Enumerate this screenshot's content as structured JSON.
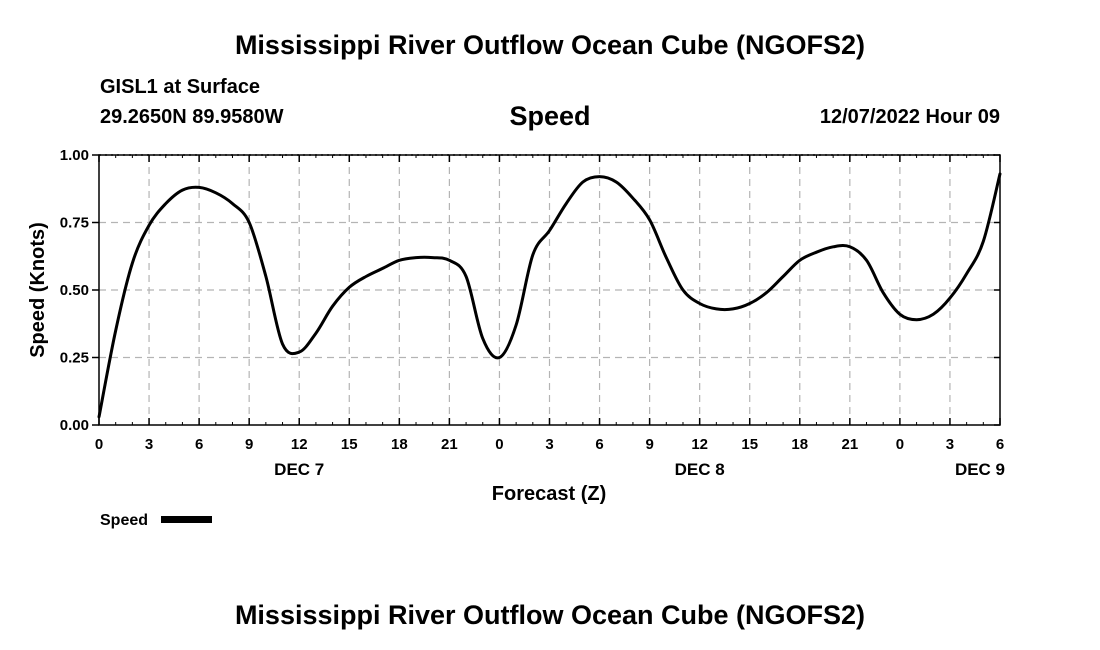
{
  "header": {
    "title": "Mississippi River Outflow Ocean Cube (NGOFS2)",
    "station": "GISL1 at Surface",
    "coords": "29.2650N  89.9580W",
    "plot_title": "Speed",
    "datetime": "12/07/2022 Hour 09"
  },
  "footer": {
    "title": "Mississippi River Outflow Ocean Cube (NGOFS2)"
  },
  "chart_data": {
    "type": "line",
    "xlabel": "Forecast (Z)",
    "ylabel": "Speed (Knots)",
    "xlim": [
      0,
      54
    ],
    "ylim": [
      0,
      1
    ],
    "x_ticks": [
      0,
      3,
      6,
      9,
      12,
      15,
      18,
      21,
      24,
      27,
      30,
      33,
      36,
      39,
      42,
      45,
      48,
      51,
      54
    ],
    "x_tick_labels": [
      "0",
      "3",
      "6",
      "9",
      "12",
      "15",
      "18",
      "21",
      "0",
      "3",
      "6",
      "9",
      "12",
      "15",
      "18",
      "21",
      "0",
      "3",
      "6"
    ],
    "y_ticks": [
      0,
      0.25,
      0.5,
      0.75,
      1.0
    ],
    "y_tick_labels": [
      "0.00",
      "0.25",
      "0.50",
      "0.75",
      "1.00"
    ],
    "day_labels": [
      {
        "x": 12,
        "label": "DEC 7"
      },
      {
        "x": 36,
        "label": "DEC 8"
      },
      {
        "x": 52.8,
        "label": "DEC 9"
      }
    ],
    "grid": true,
    "legend": {
      "position": "bottom-left",
      "entries": [
        "Speed"
      ]
    },
    "series": [
      {
        "name": "Speed",
        "color": "#000000",
        "x": [
          0,
          1,
          2,
          3,
          4,
          5,
          6,
          7,
          8,
          9,
          10,
          11,
          12,
          13,
          14,
          15,
          16,
          17,
          18,
          19,
          20,
          21,
          22,
          23,
          24,
          25,
          26,
          27,
          28,
          29,
          30,
          31,
          32,
          33,
          34,
          35,
          36,
          37,
          38,
          39,
          40,
          41,
          42,
          43,
          44,
          45,
          46,
          47,
          48,
          49,
          50,
          51,
          52,
          53,
          54
        ],
        "values": [
          0.03,
          0.35,
          0.6,
          0.74,
          0.82,
          0.87,
          0.88,
          0.86,
          0.82,
          0.75,
          0.55,
          0.3,
          0.27,
          0.34,
          0.44,
          0.51,
          0.55,
          0.58,
          0.61,
          0.62,
          0.62,
          0.61,
          0.55,
          0.32,
          0.25,
          0.37,
          0.63,
          0.72,
          0.82,
          0.9,
          0.92,
          0.9,
          0.84,
          0.76,
          0.62,
          0.5,
          0.45,
          0.43,
          0.43,
          0.45,
          0.49,
          0.55,
          0.61,
          0.64,
          0.66,
          0.66,
          0.61,
          0.49,
          0.41,
          0.39,
          0.41,
          0.47,
          0.56,
          0.68,
          0.93
        ]
      }
    ]
  }
}
